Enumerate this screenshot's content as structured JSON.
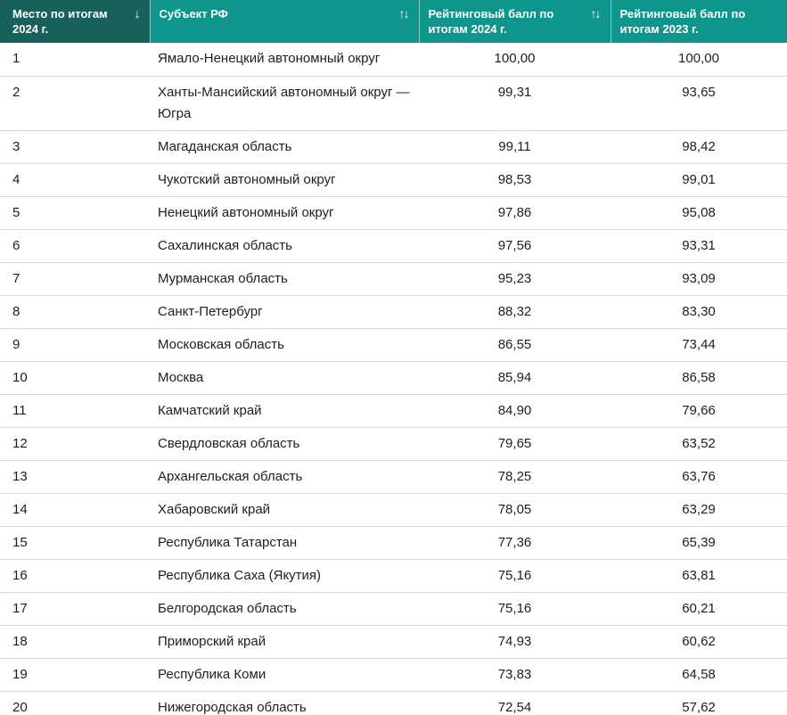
{
  "table": {
    "columns": [
      {
        "label": "Место по итогам 2024 г.",
        "sort": "↓",
        "sorted": true
      },
      {
        "label": "Субъект РФ",
        "sort": "↑↓",
        "sorted": false
      },
      {
        "label": "Рейтинговый балл по итогам 2024 г.",
        "sort": "↑↓",
        "sorted": false
      },
      {
        "label": "Рейтинговый балл по итогам 2023 г.",
        "sort": "",
        "sorted": false
      }
    ],
    "rows": [
      {
        "rank": "1",
        "region": "Ямало-Ненецкий автономный округ",
        "score_2024": "100,00",
        "score_2023": "100,00"
      },
      {
        "rank": "2",
        "region": "Ханты-Мансийский автономный округ — Югра",
        "score_2024": "99,31",
        "score_2023": "93,65"
      },
      {
        "rank": "3",
        "region": "Магаданская область",
        "score_2024": "99,11",
        "score_2023": "98,42"
      },
      {
        "rank": "4",
        "region": "Чукотский автономный округ",
        "score_2024": "98,53",
        "score_2023": "99,01"
      },
      {
        "rank": "5",
        "region": "Ненецкий автономный округ",
        "score_2024": "97,86",
        "score_2023": "95,08"
      },
      {
        "rank": "6",
        "region": "Сахалинская область",
        "score_2024": "97,56",
        "score_2023": "93,31"
      },
      {
        "rank": "7",
        "region": "Мурманская область",
        "score_2024": "95,23",
        "score_2023": "93,09"
      },
      {
        "rank": "8",
        "region": "Санкт-Петербург",
        "score_2024": "88,32",
        "score_2023": "83,30"
      },
      {
        "rank": "9",
        "region": "Московская область",
        "score_2024": "86,55",
        "score_2023": "73,44"
      },
      {
        "rank": "10",
        "region": "Москва",
        "score_2024": "85,94",
        "score_2023": "86,58"
      },
      {
        "rank": "11",
        "region": "Камчатский край",
        "score_2024": "84,90",
        "score_2023": "79,66"
      },
      {
        "rank": "12",
        "region": "Свердловская область",
        "score_2024": "79,65",
        "score_2023": "63,52"
      },
      {
        "rank": "13",
        "region": "Архангельская область",
        "score_2024": "78,25",
        "score_2023": "63,76"
      },
      {
        "rank": "14",
        "region": "Хабаровский край",
        "score_2024": "78,05",
        "score_2023": "63,29"
      },
      {
        "rank": "15",
        "region": "Республика Татарстан",
        "score_2024": "77,36",
        "score_2023": "65,39"
      },
      {
        "rank": "16",
        "region": "Республика Саха (Якутия)",
        "score_2024": "75,16",
        "score_2023": "63,81"
      },
      {
        "rank": "17",
        "region": "Белгородская область",
        "score_2024": "75,16",
        "score_2023": "60,21"
      },
      {
        "rank": "18",
        "region": "Приморский край",
        "score_2024": "74,93",
        "score_2023": "60,62"
      },
      {
        "rank": "19",
        "region": "Республика Коми",
        "score_2024": "73,83",
        "score_2023": "64,58"
      },
      {
        "rank": "20",
        "region": "Нижегородская область",
        "score_2024": "72,54",
        "score_2023": "57,62"
      }
    ],
    "colors": {
      "header_bg": "#0e968c",
      "header_sorted_bg": "#18605b",
      "header_text": "#ffffff",
      "body_text": "#1e1e1e",
      "row_border": "#d8d8d8"
    }
  }
}
